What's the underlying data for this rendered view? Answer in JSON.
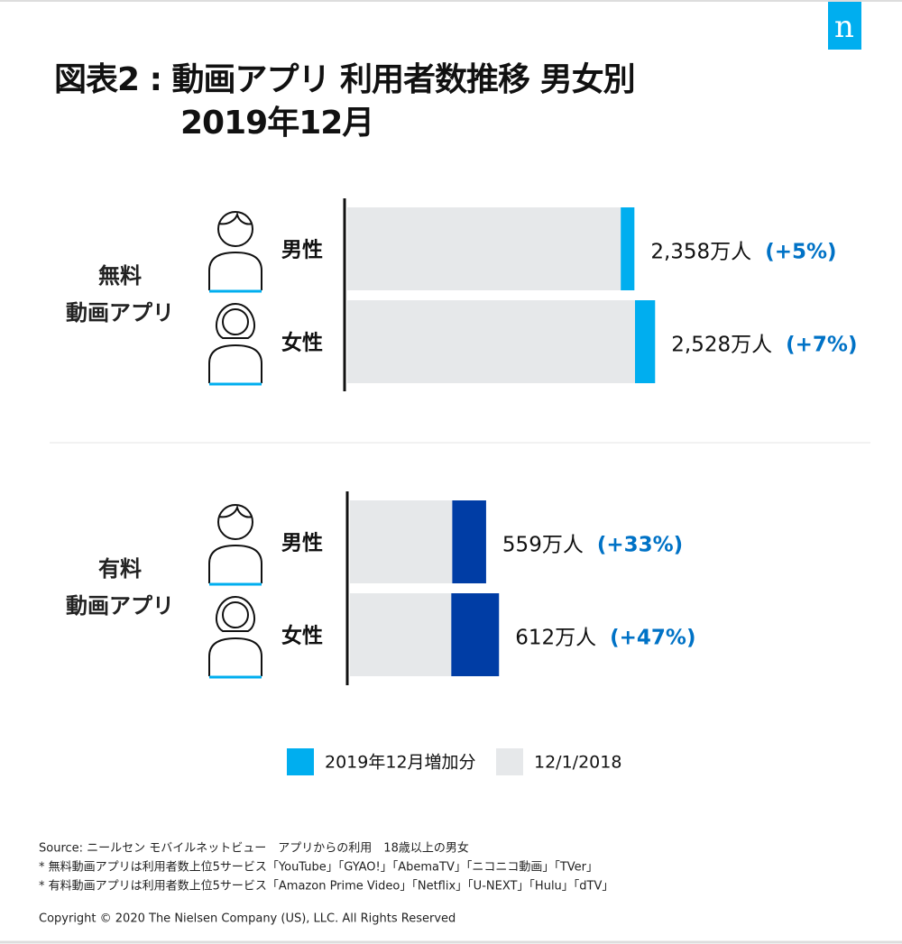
{
  "logo": "n",
  "title": [
    "図表2 : 動画アプリ 利用者数推移 男女別",
    "2019年12月"
  ],
  "chart_data": [
    {
      "type": "bar",
      "orientation": "horizontal",
      "group_label": [
        "無料",
        "動画アプリ"
      ],
      "categories": [
        "男性",
        "女性"
      ],
      "xlim": [
        0,
        4000
      ],
      "series": [
        {
          "name": "2019年12月増加分",
          "color": "#00aeef",
          "values": [
            112,
            165
          ]
        },
        {
          "name": "12/1/2018",
          "color": "#e6e8ea",
          "values": [
            2246,
            2363
          ]
        }
      ],
      "total_labels": [
        "2,358万人",
        "2,528万人"
      ],
      "change_labels": [
        "(+5%)",
        "(+7%)"
      ]
    },
    {
      "type": "bar",
      "orientation": "horizontal",
      "group_label": [
        "有料",
        "動画アプリ"
      ],
      "categories": [
        "男性",
        "女性"
      ],
      "xlim": [
        0,
        2000
      ],
      "series": [
        {
          "color": "#003da5",
          "values": [
            139,
            196
          ]
        },
        {
          "color": "#e6e8ea",
          "values": [
            420,
            416
          ]
        }
      ],
      "total_labels": [
        "559万人",
        "612万人"
      ],
      "change_labels": [
        "(+33%)",
        "(+47%)"
      ]
    }
  ],
  "footer": {
    "source": "Source: ニールセン モバイルネットビュー　アプリからの利用　18歳以上の男女",
    "notes": [
      "* 無料動画アプリは利用者数上位5サービス「YouTube」「GYAO!」「AbemaTV」「ニコニコ動画」「TVer」",
      "* 有料動画アプリは利用者数上位5サービス「Amazon Prime Video」「Netflix」「U-NEXT」「Hulu」「dTV」"
    ],
    "copyright": "Copyright © 2020 The Nielsen Company (US), LLC. All Rights Reserved"
  }
}
